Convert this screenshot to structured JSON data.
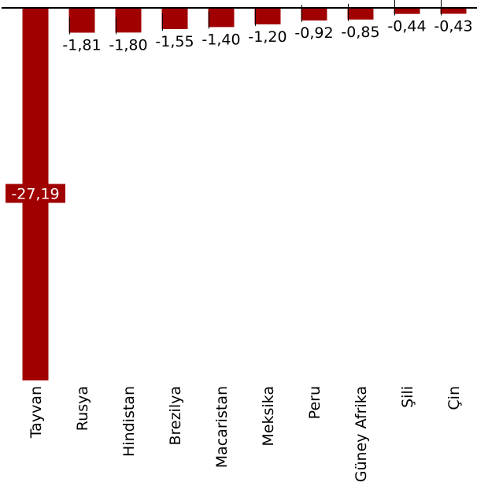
{
  "chart_data": {
    "type": "bar",
    "categories": [
      "Tayvan",
      "Rusya",
      "Hindistan",
      "Brezilya",
      "Macaristan",
      "Meksika",
      "Peru",
      "Güney Afrika",
      "Şili",
      "Çin"
    ],
    "values": [
      -27.19,
      -1.81,
      -1.8,
      -1.55,
      -1.4,
      -1.2,
      -0.92,
      -0.85,
      -0.44,
      -0.43
    ],
    "data_labels": [
      "-27,19",
      "-1,81",
      "-1,80",
      "-1,55",
      "-1,40",
      "-1,20",
      "-0,92",
      "-0,85",
      "-0,44",
      "-0,43"
    ],
    "title": "",
    "xlabel": "",
    "ylabel": "",
    "ylim": [
      -27.19,
      0
    ],
    "grid": false,
    "legend": "none",
    "bar_color": "#a00000",
    "axis_color": "#000000"
  }
}
